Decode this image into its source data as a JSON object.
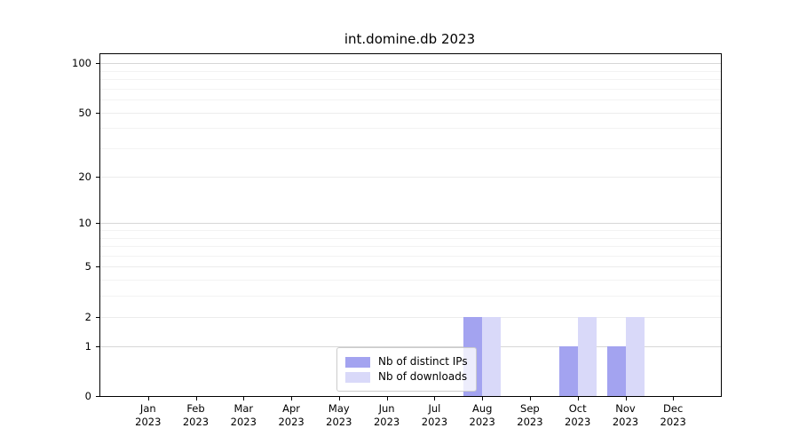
{
  "title": "int.domine.db 2023",
  "chart_data": {
    "type": "bar",
    "title": "int.domine.db 2023",
    "categories": [
      "Jan",
      "Feb",
      "Mar",
      "Apr",
      "May",
      "Jun",
      "Jul",
      "Aug",
      "Sep",
      "Oct",
      "Nov",
      "Dec"
    ],
    "year_label": "2023",
    "series": [
      {
        "name": "Nb of distinct IPs",
        "values": [
          0,
          0,
          0,
          0,
          0,
          0,
          0,
          2,
          0,
          1,
          1,
          0
        ],
        "color": "#a3a3f0"
      },
      {
        "name": "Nb of downloads",
        "values": [
          0,
          0,
          0,
          0,
          0,
          0,
          0,
          2,
          0,
          2,
          2,
          0
        ],
        "color": "#d9d9f9"
      }
    ],
    "xlabel": "",
    "ylabel": "",
    "y_axis": {
      "scale": "log1p",
      "tick_labels": [
        "0",
        "1",
        "2",
        "5",
        "10",
        "20",
        "50",
        "100"
      ],
      "major_ticks": [
        0,
        1,
        2,
        5,
        10,
        20,
        50,
        100
      ],
      "decade_ticks": [
        1,
        10,
        100
      ],
      "mid_ticks": [
        2,
        5,
        20,
        50
      ],
      "minor_ticks": [
        3,
        4,
        6,
        7,
        8,
        9,
        30,
        40,
        60,
        70,
        80,
        90
      ],
      "ylim": [
        0,
        110
      ]
    },
    "grid": true,
    "legend_position": "lower center",
    "colors": {
      "axis": "#000000",
      "grid_major": "#d7d7d7",
      "grid_minor": "#f3f3f3",
      "legend_border": "#cccccc"
    }
  }
}
